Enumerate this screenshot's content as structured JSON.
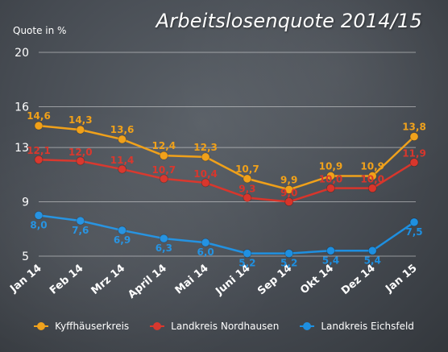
{
  "chart_data": {
    "type": "line",
    "title": "Arbeitslosenquote 2014/15",
    "ylabel": "Quote in %",
    "xlabel": "",
    "ylim": [
      5,
      20
    ],
    "yticks": [
      "20",
      "16",
      "13",
      "9",
      "5"
    ],
    "grid": true,
    "legend_position": "bottom",
    "categories": [
      "Jan 14",
      "Feb 14",
      "Mrz 14",
      "April 14",
      "Mai 14",
      "Juni 14",
      "Sep 14",
      "Okt 14",
      "Dez 14",
      "Jan 15"
    ],
    "series": [
      {
        "name": "Kyffhäuserkreis",
        "color": "#f0a018",
        "values": [
          14.6,
          14.3,
          13.6,
          12.4,
          12.3,
          10.7,
          9.9,
          10.9,
          10.9,
          13.8
        ],
        "labels": [
          "14,6",
          "14,3",
          "13,6",
          "12,4",
          "12,3",
          "10,7",
          "9,9",
          "10,9",
          "10,9",
          "13,8"
        ]
      },
      {
        "name": "Landkreis Nordhausen",
        "color": "#d8342a",
        "values": [
          12.1,
          12.0,
          11.4,
          10.7,
          10.4,
          9.3,
          9.0,
          10.0,
          10.0,
          11.9
        ],
        "labels": [
          "12,1",
          "12,0",
          "11,4",
          "10,7",
          "10,4",
          "9,3",
          "9,0",
          "10,0",
          "10,0",
          "11,9"
        ]
      },
      {
        "name": "Landkreis Eichsfeld",
        "color": "#1e8fe0",
        "values": [
          8.0,
          7.6,
          6.9,
          6.3,
          6.0,
          5.2,
          5.2,
          5.4,
          5.4,
          7.5
        ],
        "labels": [
          "8,0",
          "7,6",
          "6,9",
          "6,3",
          "6,0",
          "5,2",
          "5,2",
          "5,4",
          "5,4",
          "7,5"
        ]
      }
    ]
  }
}
